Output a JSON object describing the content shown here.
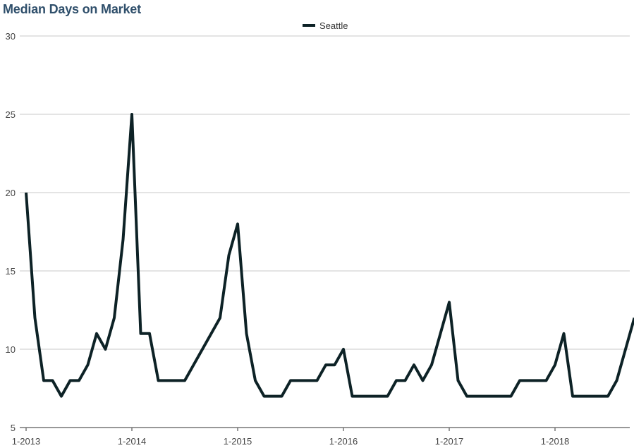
{
  "chart_data": {
    "type": "line",
    "title": "Median Days on Market",
    "xlabel": "",
    "ylabel": "",
    "ylim": [
      5,
      30
    ],
    "yticks": [
      5,
      10,
      15,
      20,
      25,
      30
    ],
    "xticks": [
      {
        "label": "1-2013",
        "index": 0
      },
      {
        "label": "1-2014",
        "index": 12
      },
      {
        "label": "1-2015",
        "index": 24
      },
      {
        "label": "1-2016",
        "index": 36
      },
      {
        "label": "1-2017",
        "index": 48
      },
      {
        "label": "1-2018",
        "index": 60
      }
    ],
    "grid": true,
    "legend_position": "top-center",
    "series": [
      {
        "name": "Seattle",
        "color": "#0d2226",
        "values": [
          20,
          12,
          8,
          8,
          7,
          8,
          8,
          9,
          11,
          10,
          12,
          17,
          25,
          11,
          11,
          8,
          8,
          8,
          8,
          9,
          10,
          11,
          12,
          16,
          18,
          11,
          8,
          7,
          7,
          7,
          8,
          8,
          8,
          8,
          9,
          9,
          10,
          7,
          7,
          7,
          7,
          7,
          8,
          8,
          9,
          8,
          9,
          11,
          13,
          8,
          7,
          7,
          7,
          7,
          7,
          7,
          8,
          8,
          8,
          8,
          9,
          11,
          7,
          7,
          7,
          7,
          7,
          8,
          10,
          12
        ]
      }
    ]
  }
}
